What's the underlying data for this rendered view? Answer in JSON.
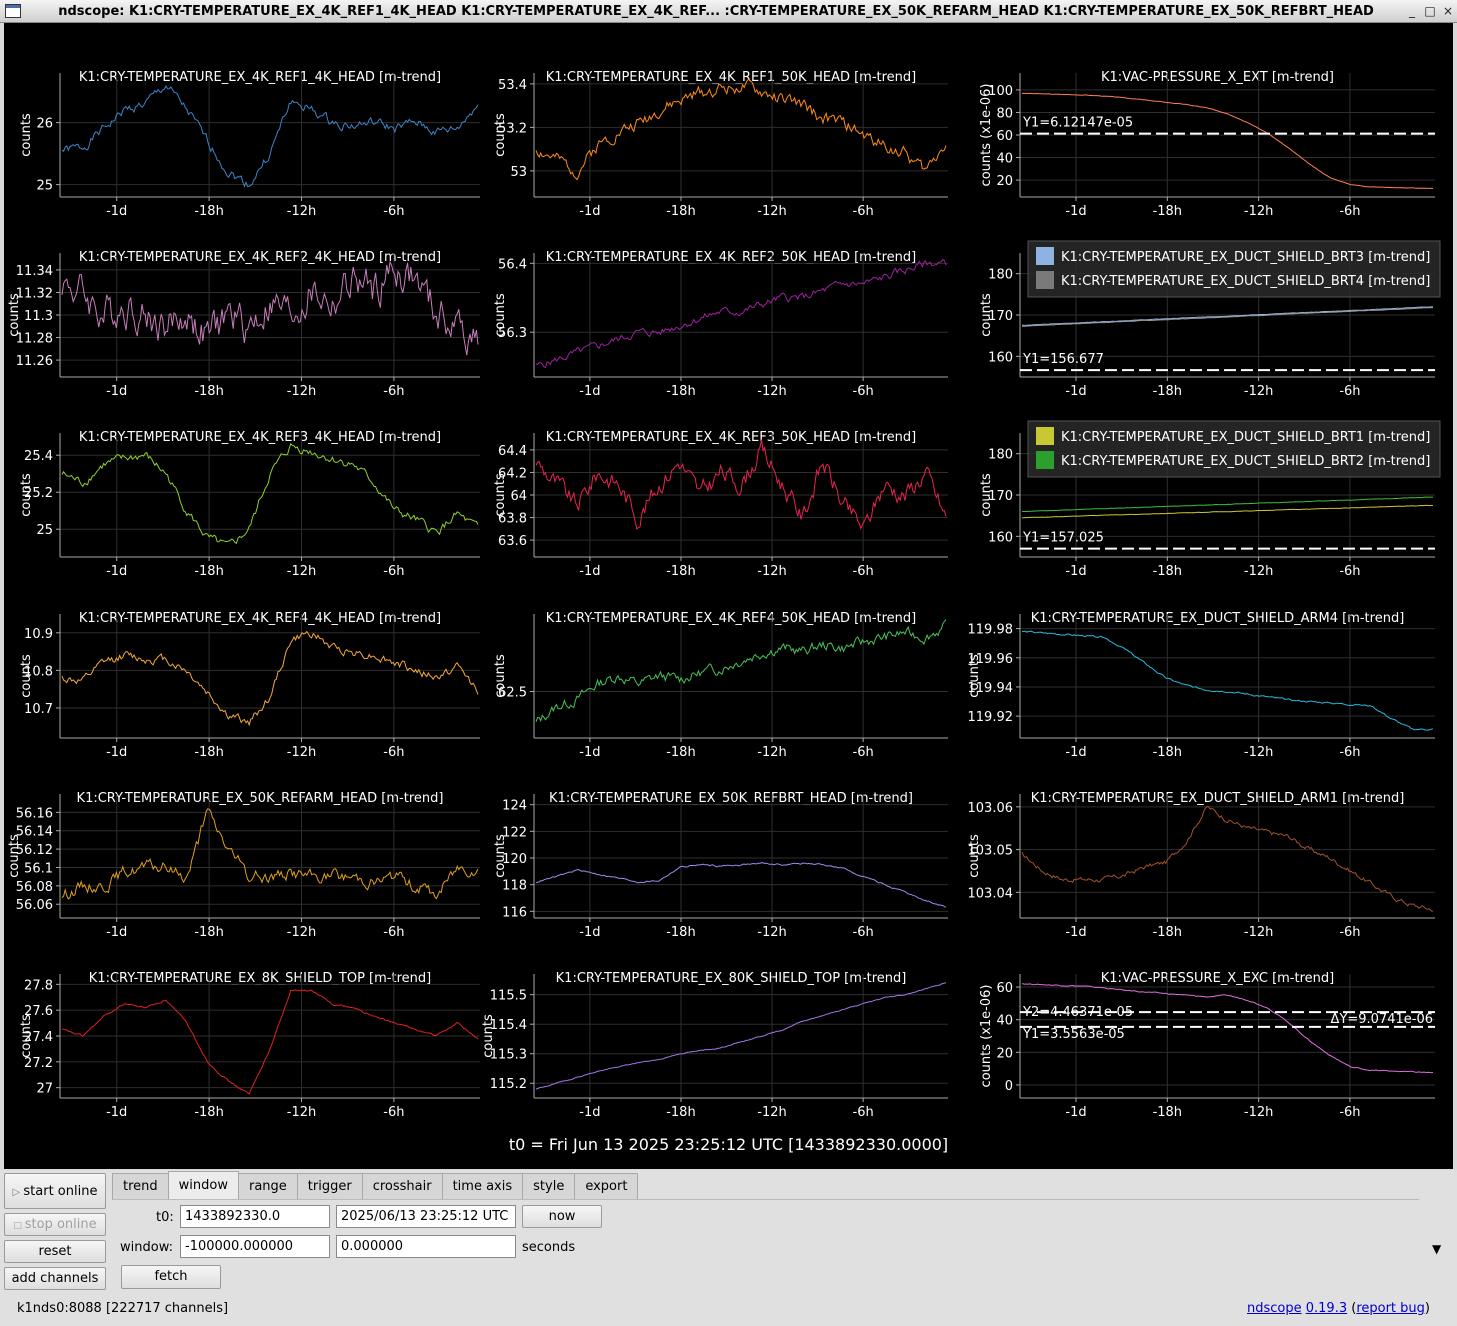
{
  "window": {
    "title": "ndscope: K1:CRY-TEMPERATURE_EX_4K_REF1_4K_HEAD K1:CRY-TEMPERATURE_EX_4K_REF... :CRY-TEMPERATURE_EX_50K_REFARM_HEAD K1:CRY-TEMPERATURE_EX_50K_REFBRT_HEAD",
    "minimize": "_",
    "maximize": "□",
    "close": "×"
  },
  "colors": {
    "grid": "#2e2e2e",
    "axis": "#aaaaaa",
    "text": "#ffffff",
    "cursor": "#ffffff"
  },
  "x_ticks": [
    "-1d",
    "-18h",
    "-12h",
    "-6h"
  ],
  "t0_label": "t0 = Fri Jun 13 2025 23:25:12 UTC [1433892330.0000]",
  "plots": [
    {
      "title": "K1:CRY-TEMPERATURE_EX_4K_REF1_4K_HEAD [m-trend]",
      "ylabel": "counts",
      "yticks": [
        {
          "v": 25,
          "l": "25"
        },
        {
          "v": 26,
          "l": "26"
        }
      ],
      "ylim": [
        24.8,
        26.8
      ],
      "series": [
        {
          "color": "#3d85c6",
          "kp": [
            25.55,
            25.6,
            25.9,
            26.2,
            26.3,
            26.6,
            26.2,
            25.7,
            25.2,
            25.0,
            25.5,
            26.35,
            26.2,
            26.0,
            25.95,
            26.0,
            25.9,
            26.0,
            25.85,
            25.9,
            26.3
          ],
          "noise": 0.08,
          "seed": 1
        }
      ]
    },
    {
      "title": "K1:CRY-TEMPERATURE_EX_4K_REF1_50K_HEAD [m-trend]",
      "ylabel": "counts",
      "yticks": [
        {
          "v": 53,
          "l": "53"
        },
        {
          "v": 53.2,
          "l": "53.2"
        },
        {
          "v": 53.4,
          "l": "53.4"
        }
      ],
      "ylim": [
        52.88,
        53.45
      ],
      "series": [
        {
          "color": "#ff8c1a",
          "kp": [
            53.1,
            53.05,
            53.0,
            53.12,
            53.18,
            53.22,
            53.28,
            53.32,
            53.36,
            53.38,
            53.39,
            53.36,
            53.33,
            53.3,
            53.24,
            53.22,
            53.16,
            53.12,
            53.08,
            53.0,
            53.14
          ],
          "noise": 0.03,
          "seed": 2
        }
      ]
    },
    {
      "title": "K1:VAC-PRESSURE_X_EXT [m-trend]",
      "ylabel": "counts (x1e-06)",
      "yticks": [
        {
          "v": 20,
          "l": "20"
        },
        {
          "v": 40,
          "l": "40"
        },
        {
          "v": 60,
          "l": "60"
        },
        {
          "v": 80,
          "l": "80"
        },
        {
          "v": 100,
          "l": "100"
        }
      ],
      "ylim": [
        5,
        115
      ],
      "cursor": {
        "v": 61.2,
        "label": "Y1=6.12147e-05"
      },
      "series": [
        {
          "color": "#ff7f50",
          "kp": [
            97,
            96.5,
            96,
            95.5,
            94.5,
            93,
            91,
            89,
            87,
            84,
            79,
            71,
            61,
            48,
            34,
            22,
            16,
            14,
            13.5,
            13,
            12.5
          ],
          "noise": 0.2,
          "seed": 3
        }
      ]
    },
    {
      "title": "K1:CRY-TEMPERATURE_EX_4K_REF2_4K_HEAD [m-trend]",
      "ylabel": "counts",
      "yticks": [
        {
          "v": 11.26,
          "l": "11.26"
        },
        {
          "v": 11.28,
          "l": "11.28"
        },
        {
          "v": 11.3,
          "l": "11.3"
        },
        {
          "v": 11.32,
          "l": "11.32"
        },
        {
          "v": 11.34,
          "l": "11.34"
        }
      ],
      "ylim": [
        11.245,
        11.355
      ],
      "series": [
        {
          "color": "#c77dba",
          "kp": [
            11.33,
            11.32,
            11.3,
            11.31,
            11.3,
            11.29,
            11.3,
            11.28,
            11.3,
            11.29,
            11.31,
            11.3,
            11.32,
            11.31,
            11.33,
            11.32,
            11.34,
            11.33,
            11.3,
            11.29,
            11.28
          ],
          "noise": 0.017,
          "seed": 4
        }
      ]
    },
    {
      "title": "K1:CRY-TEMPERATURE_EX_4K_REF2_50K_HEAD [m-trend]",
      "ylabel": "counts",
      "yticks": [
        {
          "v": 56.3,
          "l": "56.3"
        },
        {
          "v": 56.4,
          "l": "56.4"
        }
      ],
      "ylim": [
        56.235,
        56.415
      ],
      "series": [
        {
          "color": "#a020a0",
          "kp": [
            56.25,
            56.26,
            56.27,
            56.28,
            56.29,
            56.3,
            56.3,
            56.31,
            56.32,
            56.33,
            56.33,
            56.34,
            56.35,
            56.35,
            56.36,
            56.37,
            56.37,
            56.38,
            56.39,
            56.4,
            56.4
          ],
          "noise": 0.006,
          "seed": 5
        }
      ]
    },
    {
      "title": "",
      "ylabel": "counts",
      "yticks": [
        {
          "v": 160,
          "l": "160"
        },
        {
          "v": 170,
          "l": "170"
        },
        {
          "v": 180,
          "l": "180"
        }
      ],
      "ylim": [
        155,
        185
      ],
      "cursor": {
        "v": 156.677,
        "label": "Y1=156.677"
      },
      "legend": [
        {
          "label": "K1:CRY-TEMPERATURE_EX_DUCT_SHIELD_BRT3 [m-trend]",
          "color": "#8fb3e0"
        },
        {
          "label": "K1:CRY-TEMPERATURE_EX_DUCT_SHIELD_BRT4 [m-trend]",
          "color": "#7a7a7a"
        }
      ],
      "series": [
        {
          "color": "#8fb3e0",
          "kp": [
            167.5,
            172
          ],
          "noise": 0.05,
          "seed": 6
        },
        {
          "color": "#9a9a9a",
          "kp": [
            167.3,
            171.8
          ],
          "noise": 0.05,
          "seed": 7
        }
      ]
    },
    {
      "title": "K1:CRY-TEMPERATURE_EX_4K_REF3_4K_HEAD [m-trend]",
      "ylabel": "counts",
      "yticks": [
        {
          "v": 25,
          "l": "25"
        },
        {
          "v": 25.2,
          "l": "25.2"
        },
        {
          "v": 25.4,
          "l": "25.4"
        }
      ],
      "ylim": [
        24.85,
        25.52
      ],
      "series": [
        {
          "color": "#8fd12b",
          "kp": [
            25.3,
            25.25,
            25.35,
            25.38,
            25.4,
            25.3,
            25.1,
            24.95,
            24.9,
            25.0,
            25.3,
            25.45,
            25.42,
            25.38,
            25.35,
            25.25,
            25.1,
            25.05,
            24.98,
            25.08,
            25.0
          ],
          "noise": 0.025,
          "seed": 8
        }
      ]
    },
    {
      "title": "K1:CRY-TEMPERATURE_EX_4K_REF3_50K_HEAD [m-trend]",
      "ylabel": "counts",
      "yticks": [
        {
          "v": 63.6,
          "l": "63.6"
        },
        {
          "v": 63.8,
          "l": "63.8"
        },
        {
          "v": 64,
          "l": "64"
        },
        {
          "v": 64.2,
          "l": "64.2"
        },
        {
          "v": 64.4,
          "l": "64.4"
        }
      ],
      "ylim": [
        63.45,
        64.55
      ],
      "series": [
        {
          "color": "#e8234f",
          "kp": [
            64.3,
            64.1,
            63.9,
            64.2,
            64.1,
            63.8,
            64.1,
            64.3,
            64.0,
            64.2,
            64.1,
            64.4,
            64.1,
            63.8,
            64.3,
            63.9,
            63.7,
            64.1,
            64.0,
            64.2,
            63.8
          ],
          "noise": 0.09,
          "seed": 9
        }
      ]
    },
    {
      "title": "",
      "ylabel": "counts",
      "yticks": [
        {
          "v": 160,
          "l": "160"
        },
        {
          "v": 170,
          "l": "170"
        },
        {
          "v": 180,
          "l": "180"
        }
      ],
      "ylim": [
        155,
        185
      ],
      "cursor": {
        "v": 157.025,
        "label": "Y1=157.025"
      },
      "legend": [
        {
          "label": "K1:CRY-TEMPERATURE_EX_DUCT_SHIELD_BRT1 [m-trend]",
          "color": "#c8c832"
        },
        {
          "label": "K1:CRY-TEMPERATURE_EX_DUCT_SHIELD_BRT2 [m-trend]",
          "color": "#2ca02c"
        }
      ],
      "series": [
        {
          "color": "#c8c832",
          "kp": [
            164.5,
            167.5
          ],
          "noise": 0.05,
          "seed": 10
        },
        {
          "color": "#3cbf3c",
          "kp": [
            166,
            169.5
          ],
          "noise": 0.05,
          "seed": 11
        }
      ]
    },
    {
      "title": "K1:CRY-TEMPERATURE_EX_4K_REF4_4K_HEAD [m-trend]",
      "ylabel": "counts",
      "yticks": [
        {
          "v": 10.7,
          "l": "10.7"
        },
        {
          "v": 10.8,
          "l": "10.8"
        },
        {
          "v": 10.9,
          "l": "10.9"
        }
      ],
      "ylim": [
        10.62,
        10.95
      ],
      "series": [
        {
          "color": "#f2a93b",
          "kp": [
            10.78,
            10.77,
            10.82,
            10.84,
            10.83,
            10.83,
            10.8,
            10.74,
            10.68,
            10.66,
            10.73,
            10.88,
            10.9,
            10.86,
            10.85,
            10.84,
            10.82,
            10.8,
            10.78,
            10.81,
            10.75
          ],
          "noise": 0.012,
          "seed": 12
        }
      ]
    },
    {
      "title": "K1:CRY-TEMPERATURE_EX_4K_REF4_50K_HEAD [m-trend]",
      "ylabel": "counts",
      "yticks": [
        {
          "v": 62.5,
          "l": "62.5"
        }
      ],
      "ylim": [
        62.2,
        63.0
      ],
      "series": [
        {
          "color": "#4ac25a",
          "kp": [
            62.3,
            62.4,
            62.45,
            62.55,
            62.6,
            62.55,
            62.6,
            62.58,
            62.62,
            62.65,
            62.7,
            62.75,
            62.78,
            62.76,
            62.8,
            62.78,
            62.82,
            62.85,
            62.88,
            62.85,
            62.92
          ],
          "noise": 0.035,
          "seed": 13
        }
      ]
    },
    {
      "title": "K1:CRY-TEMPERATURE_EX_DUCT_SHIELD_ARM4 [m-trend]",
      "ylabel": "counts",
      "yticks": [
        {
          "v": 119.92,
          "l": "119.92"
        },
        {
          "v": 119.94,
          "l": "119.94"
        },
        {
          "v": 119.96,
          "l": "119.96"
        },
        {
          "v": 119.98,
          "l": "119.98"
        }
      ],
      "ylim": [
        119.905,
        119.99
      ],
      "series": [
        {
          "color": "#2ab7e0",
          "kp": [
            119.978,
            119.977,
            119.976,
            119.975,
            119.974,
            119.966,
            119.956,
            119.946,
            119.941,
            119.938,
            119.937,
            119.935,
            119.933,
            119.931,
            119.93,
            119.929,
            119.928,
            119.927,
            119.918,
            119.911,
            119.911
          ],
          "noise": 0.0006,
          "seed": 14
        }
      ]
    },
    {
      "title": "K1:CRY-TEMPERATURE_EX_50K_REFARM_HEAD [m-trend]",
      "ylabel": "counts",
      "yticks": [
        {
          "v": 56.06,
          "l": "56.06"
        },
        {
          "v": 56.08,
          "l": "56.08"
        },
        {
          "v": 56.1,
          "l": "56.1"
        },
        {
          "v": 56.12,
          "l": "56.12"
        },
        {
          "v": 56.14,
          "l": "56.14"
        },
        {
          "v": 56.16,
          "l": "56.16"
        }
      ],
      "ylim": [
        56.045,
        56.18
      ],
      "series": [
        {
          "color": "#e0a020",
          "kp": [
            56.07,
            56.08,
            56.08,
            56.095,
            56.1,
            56.1,
            56.09,
            56.16,
            56.12,
            56.09,
            56.09,
            56.095,
            56.09,
            56.09,
            56.09,
            56.085,
            56.09,
            56.08,
            56.07,
            56.1,
            56.1
          ],
          "noise": 0.007,
          "seed": 15
        }
      ]
    },
    {
      "title": "K1:CRY-TEMPERATURE_EX_50K_REFBRT_HEAD [m-trend]",
      "ylabel": "counts",
      "yticks": [
        {
          "v": 116,
          "l": "116"
        },
        {
          "v": 118,
          "l": "118"
        },
        {
          "v": 120,
          "l": "120"
        },
        {
          "v": 122,
          "l": "122"
        },
        {
          "v": 124,
          "l": "124"
        }
      ],
      "ylim": [
        115.5,
        124.8
      ],
      "series": [
        {
          "color": "#9a8cf0",
          "kp": [
            118.2,
            118.6,
            119.1,
            118.8,
            118.5,
            118.2,
            118.3,
            119.3,
            119.5,
            119.4,
            119.5,
            119.6,
            119.5,
            119.6,
            119.5,
            119.2,
            118.6,
            118.0,
            117.4,
            116.8,
            116.3
          ],
          "noise": 0.06,
          "seed": 16
        }
      ]
    },
    {
      "title": "K1:CRY-TEMPERATURE_EX_DUCT_SHIELD_ARM1 [m-trend]",
      "ylabel": "counts",
      "yticks": [
        {
          "v": 103.04,
          "l": "103.04"
        },
        {
          "v": 103.05,
          "l": "103.05"
        },
        {
          "v": 103.06,
          "l": "103.06"
        }
      ],
      "ylim": [
        103.034,
        103.063
      ],
      "series": [
        {
          "color": "#a0522d",
          "kp": [
            103.049,
            103.045,
            103.043,
            103.043,
            103.043,
            103.044,
            103.046,
            103.047,
            103.052,
            103.06,
            103.057,
            103.055,
            103.054,
            103.053,
            103.05,
            103.048,
            103.045,
            103.042,
            103.039,
            103.037,
            103.036
          ],
          "noise": 0.0006,
          "seed": 17
        }
      ]
    },
    {
      "title": "K1:CRY-TEMPERATURE_EX_8K_SHIELD_TOP [m-trend]",
      "ylabel": "counts",
      "yticks": [
        {
          "v": 27,
          "l": "27"
        },
        {
          "v": 27.2,
          "l": "27.2"
        },
        {
          "v": 27.4,
          "l": "27.4"
        },
        {
          "v": 27.6,
          "l": "27.6"
        },
        {
          "v": 27.8,
          "l": "27.8"
        }
      ],
      "ylim": [
        26.92,
        27.88
      ],
      "series": [
        {
          "color": "#e02020",
          "kp": [
            27.45,
            27.4,
            27.55,
            27.65,
            27.62,
            27.68,
            27.5,
            27.2,
            27.05,
            26.95,
            27.3,
            27.75,
            27.75,
            27.65,
            27.62,
            27.55,
            27.5,
            27.45,
            27.4,
            27.5,
            27.38
          ],
          "noise": 0.008,
          "seed": 18
        }
      ]
    },
    {
      "title": "K1:CRY-TEMPERATURE_EX_80K_SHIELD_TOP [m-trend]",
      "ylabel": "counts",
      "yticks": [
        {
          "v": 115.2,
          "l": "115.2"
        },
        {
          "v": 115.3,
          "l": "115.3"
        },
        {
          "v": 115.4,
          "l": "115.4"
        },
        {
          "v": 115.5,
          "l": "115.5"
        }
      ],
      "ylim": [
        115.15,
        115.57
      ],
      "series": [
        {
          "color": "#a078e8",
          "kp": [
            115.18,
            115.2,
            115.22,
            115.24,
            115.255,
            115.27,
            115.28,
            115.3,
            115.31,
            115.32,
            115.34,
            115.36,
            115.38,
            115.41,
            115.43,
            115.45,
            115.47,
            115.49,
            115.5,
            115.52,
            115.54
          ],
          "noise": 0.0015,
          "seed": 19
        }
      ]
    },
    {
      "title": "K1:VAC-PRESSURE_X_EXC [m-trend]",
      "ylabel": "counts (x1e-06)",
      "yticks": [
        {
          "v": 0,
          "l": "0"
        },
        {
          "v": 20,
          "l": "20"
        },
        {
          "v": 40,
          "l": "40"
        },
        {
          "v": 60,
          "l": "60"
        }
      ],
      "ylim": [
        -8,
        68
      ],
      "cursors": [
        {
          "v": 44.6371,
          "label": "Y2=4.46371e-05",
          "pos": "below"
        },
        {
          "v": 35.563,
          "label": "Y1=3.5563e-05",
          "pos": "below"
        }
      ],
      "delta_label": "ΔY=9.0741e-06",
      "series": [
        {
          "color": "#e070e0",
          "kp": [
            62,
            61.5,
            61,
            60.5,
            59.5,
            58,
            57,
            56,
            55,
            54,
            55,
            52,
            47,
            38,
            27,
            18,
            11,
            9,
            8.5,
            8,
            7.5
          ],
          "noise": 0.3,
          "seed": 20
        }
      ]
    }
  ],
  "controls": {
    "start_online": "start online",
    "stop_online": "stop online",
    "reset": "reset",
    "add_channels": "add channels",
    "tabs": [
      "trend",
      "window",
      "range",
      "trigger",
      "crosshair",
      "time axis",
      "style",
      "export"
    ],
    "active_tab": "window",
    "t0_label": "t0:",
    "t0_gps": "1433892330.0",
    "t0_utc": "2025/06/13 23:25:12 UTC",
    "now": "now",
    "window_label": "window:",
    "window_start": "-100000.000000",
    "window_end": "0.000000",
    "seconds": "seconds",
    "fetch": "fetch"
  },
  "status": {
    "server": "k1nds0:8088",
    "channels": "[222717 channels]",
    "app": "ndscope",
    "version": "0.19.3",
    "bug_open": "(",
    "bug": "report bug",
    "bug_close": ")"
  }
}
